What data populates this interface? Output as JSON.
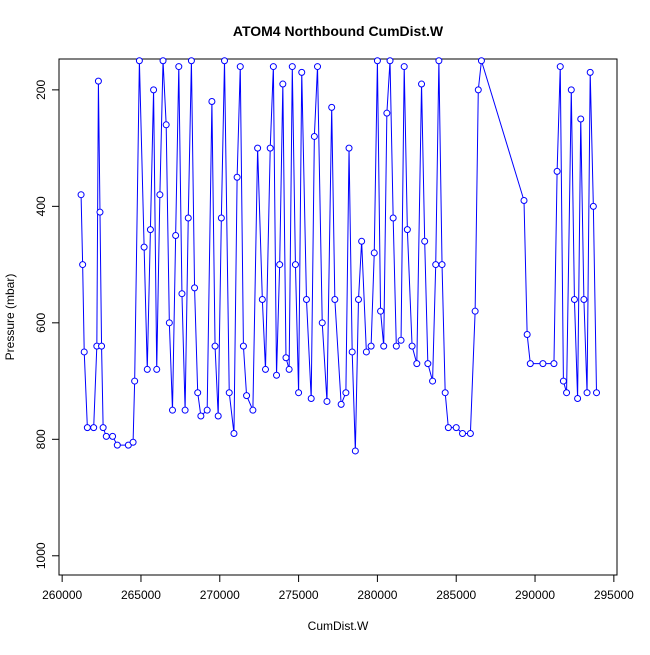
{
  "chart_data": {
    "type": "line",
    "title": "ATOM4 Northbound CumDist.W",
    "xlabel": "CumDist.W",
    "ylabel": "Pressure (mbar)",
    "color": "#0000ff",
    "xlim": [
      259800,
      295200
    ],
    "ylim": [
      1033,
      147
    ],
    "xticks": [
      260000,
      265000,
      270000,
      275000,
      280000,
      285000,
      290000,
      295000
    ],
    "yticks": [
      200,
      400,
      600,
      800,
      1000
    ],
    "x": [
      261200,
      261300,
      261400,
      261600,
      262000,
      262200,
      262300,
      262400,
      262500,
      262600,
      262800,
      263200,
      263500,
      264200,
      264500,
      264600,
      264900,
      265200,
      265400,
      265600,
      265800,
      266000,
      266200,
      266400,
      266600,
      266800,
      267000,
      267200,
      267400,
      267600,
      267800,
      268000,
      268200,
      268400,
      268600,
      268800,
      269200,
      269500,
      269700,
      269900,
      270100,
      270300,
      270600,
      270900,
      271100,
      271300,
      271500,
      271700,
      272100,
      272400,
      272700,
      272900,
      273200,
      273400,
      273600,
      273800,
      274000,
      274200,
      274400,
      274600,
      274800,
      275000,
      275200,
      275500,
      275800,
      276000,
      276200,
      276500,
      276800,
      277100,
      277300,
      277700,
      278000,
      278200,
      278400,
      278600,
      278800,
      279000,
      279300,
      279600,
      279800,
      280000,
      280200,
      280400,
      280600,
      280800,
      281000,
      281200,
      281500,
      281700,
      281900,
      282200,
      282500,
      282800,
      283000,
      283200,
      283500,
      283700,
      283900,
      284100,
      284300,
      284500,
      285000,
      285400,
      285900,
      286200,
      286400,
      286600,
      289300,
      289500,
      289700,
      290500,
      291200,
      291400,
      291600,
      291800,
      292000,
      292300,
      292500,
      292700,
      292900,
      293100,
      293300,
      293500,
      293700,
      293900
    ],
    "values": [
      380,
      500,
      650,
      780,
      780,
      640,
      185,
      410,
      640,
      780,
      795,
      795,
      810,
      810,
      805,
      700,
      150,
      470,
      680,
      440,
      200,
      680,
      380,
      150,
      260,
      600,
      750,
      450,
      160,
      550,
      750,
      420,
      150,
      540,
      720,
      760,
      750,
      220,
      640,
      760,
      420,
      150,
      720,
      790,
      350,
      160,
      640,
      725,
      750,
      300,
      560,
      680,
      300,
      160,
      690,
      500,
      190,
      660,
      680,
      160,
      500,
      720,
      170,
      560,
      730,
      280,
      160,
      600,
      735,
      230,
      560,
      740,
      720,
      300,
      650,
      820,
      560,
      460,
      650,
      640,
      480,
      150,
      580,
      640,
      240,
      150,
      420,
      640,
      630,
      160,
      440,
      640,
      670,
      190,
      460,
      670,
      700,
      500,
      150,
      500,
      720,
      780,
      780,
      790,
      790,
      580,
      200,
      150,
      390,
      620,
      670,
      670,
      670,
      340,
      160,
      700,
      720,
      200,
      560,
      730,
      250,
      560,
      720,
      170,
      400,
      720
    ]
  }
}
